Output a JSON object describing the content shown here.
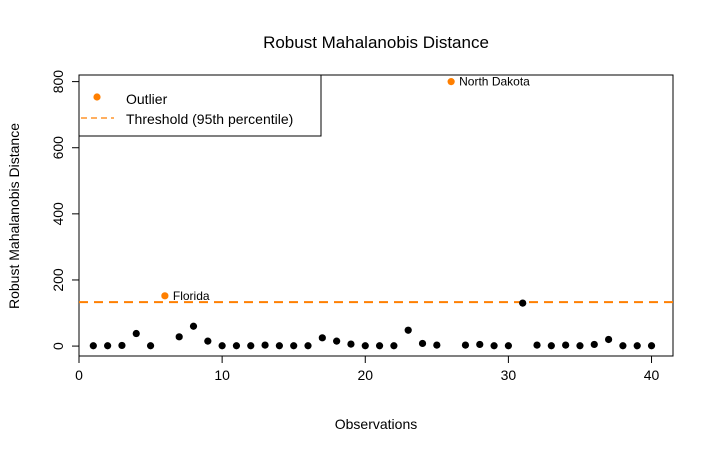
{
  "colors": {
    "normal": "#000000",
    "outlier": "#ff7f00",
    "threshold": "#ff7f00"
  },
  "chart_data": {
    "type": "scatter",
    "title": "Robust Mahalanobis Distance",
    "xlabel": "Observations",
    "ylabel": "Robust Mahalanobis Distance",
    "xlim": [
      0,
      41.5
    ],
    "ylim": [
      -30,
      820
    ],
    "xticks": [
      0,
      10,
      20,
      30,
      40
    ],
    "yticks": [
      0,
      200,
      400,
      600,
      800
    ],
    "threshold": 133,
    "legend": {
      "position": "top-left",
      "entries": [
        {
          "label": "Outlier",
          "kind": "point"
        },
        {
          "label": "Threshold (95th percentile)",
          "kind": "dashed-line"
        }
      ]
    },
    "x": [
      1,
      2,
      3,
      4,
      5,
      6,
      7,
      8,
      9,
      10,
      11,
      12,
      13,
      14,
      15,
      16,
      17,
      18,
      19,
      20,
      21,
      22,
      23,
      24,
      25,
      26,
      27,
      28,
      29,
      30,
      31,
      32,
      33,
      34,
      35,
      36,
      37,
      38,
      39,
      40
    ],
    "y": [
      1,
      1,
      2,
      38,
      1,
      152,
      28,
      60,
      15,
      1,
      1,
      1,
      3,
      1,
      1,
      1,
      25,
      15,
      6,
      1,
      1,
      1,
      48,
      8,
      3,
      800,
      3,
      5,
      1,
      1,
      130,
      3,
      1,
      3,
      1,
      5,
      20,
      1,
      1,
      1
    ],
    "outliers": [
      6,
      26
    ],
    "annotations": [
      {
        "x": 6,
        "label": "Florida"
      },
      {
        "x": 26,
        "label": "North Dakota"
      }
    ]
  }
}
